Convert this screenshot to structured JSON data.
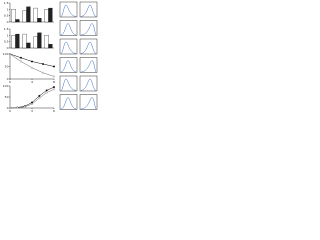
{
  "chart_data": [
    {
      "type": "bar",
      "categories": [
        null,
        null,
        null,
        null
      ],
      "series": [
        {
          "color": "#ffffff",
          "values": [
            1.0,
            0.9,
            1.1,
            1.0
          ]
        },
        {
          "color": "#222222",
          "values": [
            0.2,
            1.2,
            0.3,
            1.1
          ]
        }
      ],
      "ylim": [
        0,
        1.5
      ],
      "yticks": [
        0,
        0.5,
        1,
        1.5
      ]
    },
    {
      "type": "bar",
      "categories": [
        null,
        null,
        null,
        null
      ],
      "series": [
        {
          "color": "#ffffff",
          "values": [
            1.0,
            1.1,
            0.9,
            1.0
          ]
        },
        {
          "color": "#222222",
          "values": [
            1.1,
            0.4,
            1.2,
            0.3
          ]
        }
      ],
      "ylim": [
        0,
        1.5
      ],
      "yticks": [
        0,
        0.5,
        1,
        1.5
      ]
    },
    {
      "type": "line",
      "x": [
        0,
        2,
        4,
        6,
        8
      ],
      "series": [
        {
          "color": "#000000",
          "values": [
            100,
            85,
            70,
            60,
            50
          ]
        },
        {
          "color": "#666666",
          "values": [
            100,
            70,
            45,
            25,
            10
          ]
        }
      ],
      "xlim": [
        0,
        8
      ],
      "xticks": [
        0,
        4,
        8
      ],
      "ylim": [
        0,
        100
      ],
      "yticks": [
        0,
        50,
        100
      ]
    },
    {
      "type": "line",
      "x": [
        0,
        1,
        2,
        3,
        4,
        5,
        6
      ],
      "series": [
        {
          "color": "#000000",
          "values": [
            0,
            2,
            8,
            25,
            55,
            80,
            95
          ]
        },
        {
          "color": "#666666",
          "values": [
            0,
            1,
            5,
            18,
            45,
            70,
            85
          ]
        }
      ],
      "xlim": [
        0,
        6
      ],
      "xticks": [
        0,
        3,
        6
      ],
      "ylim": [
        0,
        100
      ],
      "yticks": [
        0,
        50,
        100
      ]
    }
  ]
}
